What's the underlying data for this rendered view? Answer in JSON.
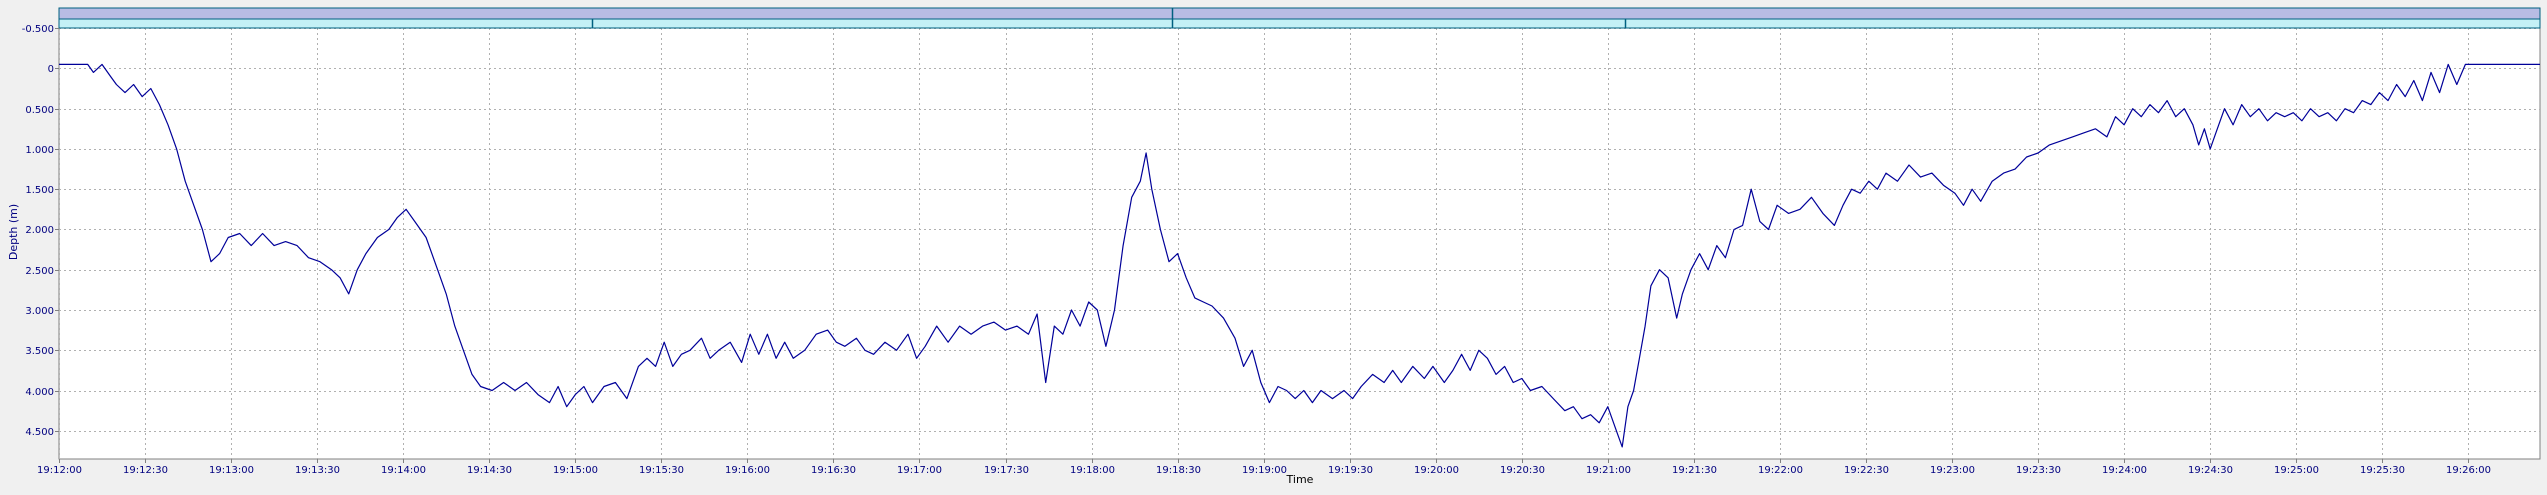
{
  "chart_data": {
    "type": "line",
    "title": "",
    "xlabel": "Time",
    "ylabel": "Depth (m)",
    "y_inverted": true,
    "ylim": [
      -0.75,
      4.85
    ],
    "xlim": [
      "19:12:00",
      "19:26:25"
    ],
    "grid": true,
    "colors": {
      "plot_bg": "#ffffff",
      "outer_bg": "#f0f0f0",
      "line": "#000099",
      "grid": "#b0b0b0",
      "axis_text": "#000080",
      "band_top": "#b8bce4",
      "band_bottom": "#c4f0f6",
      "band_border": "#006080"
    },
    "y_ticks": [
      {
        "v": -0.5,
        "label": "-0.500"
      },
      {
        "v": 0,
        "label": "0"
      },
      {
        "v": 0.5,
        "label": "0.500"
      },
      {
        "v": 1.0,
        "label": "1.000"
      },
      {
        "v": 1.5,
        "label": "1.500"
      },
      {
        "v": 2.0,
        "label": "2.000"
      },
      {
        "v": 2.5,
        "label": "2.500"
      },
      {
        "v": 3.0,
        "label": "3.000"
      },
      {
        "v": 3.5,
        "label": "3.500"
      },
      {
        "v": 4.0,
        "label": "4.000"
      },
      {
        "v": 4.5,
        "label": "4.500"
      }
    ],
    "x_ticks": [
      "19:12:00",
      "19:12:30",
      "19:13:00",
      "19:13:30",
      "19:14:00",
      "19:14:30",
      "19:15:00",
      "19:15:30",
      "19:16:00",
      "19:16:30",
      "19:17:00",
      "19:17:30",
      "19:18:00",
      "19:18:30",
      "19:19:00",
      "19:19:30",
      "19:20:00",
      "19:20:30",
      "19:21:00",
      "19:21:30",
      "19:22:00",
      "19:22:30",
      "19:23:00",
      "19:23:30",
      "19:24:00",
      "19:24:30",
      "19:25:00",
      "19:25:30",
      "19:26:00"
    ],
    "band_markers": [
      "19:15:06",
      "19:18:28",
      "19:21:06"
    ],
    "series": [
      {
        "name": "",
        "points": [
          [
            "19:12:00",
            -0.05
          ],
          [
            "19:12:10",
            -0.05
          ],
          [
            "19:12:12",
            0.05
          ],
          [
            "19:12:15",
            -0.05
          ],
          [
            "19:12:18",
            0.1
          ],
          [
            "19:12:20",
            0.2
          ],
          [
            "19:12:23",
            0.3
          ],
          [
            "19:12:26",
            0.2
          ],
          [
            "19:12:29",
            0.35
          ],
          [
            "19:12:32",
            0.25
          ],
          [
            "19:12:35",
            0.45
          ],
          [
            "19:12:38",
            0.7
          ],
          [
            "19:12:41",
            1.0
          ],
          [
            "19:12:44",
            1.4
          ],
          [
            "19:12:47",
            1.7
          ],
          [
            "19:12:50",
            2.0
          ],
          [
            "19:12:53",
            2.4
          ],
          [
            "19:12:56",
            2.3
          ],
          [
            "19:12:59",
            2.1
          ],
          [
            "19:13:03",
            2.05
          ],
          [
            "19:13:07",
            2.2
          ],
          [
            "19:13:11",
            2.05
          ],
          [
            "19:13:15",
            2.2
          ],
          [
            "19:13:19",
            2.15
          ],
          [
            "19:13:23",
            2.2
          ],
          [
            "19:13:27",
            2.35
          ],
          [
            "19:13:31",
            2.4
          ],
          [
            "19:13:35",
            2.5
          ],
          [
            "19:13:38",
            2.6
          ],
          [
            "19:13:41",
            2.8
          ],
          [
            "19:13:44",
            2.5
          ],
          [
            "19:13:47",
            2.3
          ],
          [
            "19:13:51",
            2.1
          ],
          [
            "19:13:55",
            2.0
          ],
          [
            "19:13:58",
            1.85
          ],
          [
            "19:14:01",
            1.75
          ],
          [
            "19:14:04",
            1.9
          ],
          [
            "19:14:08",
            2.1
          ],
          [
            "19:14:12",
            2.5
          ],
          [
            "19:14:15",
            2.8
          ],
          [
            "19:14:18",
            3.2
          ],
          [
            "19:14:21",
            3.5
          ],
          [
            "19:14:24",
            3.8
          ],
          [
            "19:14:27",
            3.95
          ],
          [
            "19:14:31",
            4.0
          ],
          [
            "19:14:35",
            3.9
          ],
          [
            "19:14:39",
            4.0
          ],
          [
            "19:14:43",
            3.9
          ],
          [
            "19:14:47",
            4.05
          ],
          [
            "19:14:51",
            4.15
          ],
          [
            "19:14:54",
            3.95
          ],
          [
            "19:14:57",
            4.2
          ],
          [
            "19:15:00",
            4.05
          ],
          [
            "19:15:03",
            3.95
          ],
          [
            "19:15:06",
            4.15
          ],
          [
            "19:15:10",
            3.95
          ],
          [
            "19:15:14",
            3.9
          ],
          [
            "19:15:18",
            4.1
          ],
          [
            "19:15:22",
            3.7
          ],
          [
            "19:15:25",
            3.6
          ],
          [
            "19:15:28",
            3.7
          ],
          [
            "19:15:31",
            3.4
          ],
          [
            "19:15:34",
            3.7
          ],
          [
            "19:15:37",
            3.55
          ],
          [
            "19:15:40",
            3.5
          ],
          [
            "19:15:44",
            3.35
          ],
          [
            "19:15:47",
            3.6
          ],
          [
            "19:15:50",
            3.5
          ],
          [
            "19:15:54",
            3.4
          ],
          [
            "19:15:58",
            3.65
          ],
          [
            "19:16:01",
            3.3
          ],
          [
            "19:16:04",
            3.55
          ],
          [
            "19:16:07",
            3.3
          ],
          [
            "19:16:10",
            3.6
          ],
          [
            "19:16:13",
            3.4
          ],
          [
            "19:16:16",
            3.6
          ],
          [
            "19:16:20",
            3.5
          ],
          [
            "19:16:24",
            3.3
          ],
          [
            "19:16:28",
            3.25
          ],
          [
            "19:16:31",
            3.4
          ],
          [
            "19:16:34",
            3.45
          ],
          [
            "19:16:38",
            3.35
          ],
          [
            "19:16:41",
            3.5
          ],
          [
            "19:16:44",
            3.55
          ],
          [
            "19:16:48",
            3.4
          ],
          [
            "19:16:52",
            3.5
          ],
          [
            "19:16:56",
            3.3
          ],
          [
            "19:16:59",
            3.6
          ],
          [
            "19:17:02",
            3.45
          ],
          [
            "19:17:06",
            3.2
          ],
          [
            "19:17:10",
            3.4
          ],
          [
            "19:17:14",
            3.2
          ],
          [
            "19:17:18",
            3.3
          ],
          [
            "19:17:22",
            3.2
          ],
          [
            "19:17:26",
            3.15
          ],
          [
            "19:17:30",
            3.25
          ],
          [
            "19:17:34",
            3.2
          ],
          [
            "19:17:38",
            3.3
          ],
          [
            "19:17:41",
            3.05
          ],
          [
            "19:17:44",
            3.9
          ],
          [
            "19:17:47",
            3.2
          ],
          [
            "19:17:50",
            3.3
          ],
          [
            "19:17:53",
            3.0
          ],
          [
            "19:17:56",
            3.2
          ],
          [
            "19:17:59",
            2.9
          ],
          [
            "19:18:02",
            3.0
          ],
          [
            "19:18:05",
            3.45
          ],
          [
            "19:18:08",
            3.0
          ],
          [
            "19:18:11",
            2.2
          ],
          [
            "19:18:14",
            1.6
          ],
          [
            "19:18:17",
            1.4
          ],
          [
            "19:18:19",
            1.05
          ],
          [
            "19:18:21",
            1.5
          ],
          [
            "19:18:24",
            2.0
          ],
          [
            "19:18:27",
            2.4
          ],
          [
            "19:18:30",
            2.3
          ],
          [
            "19:18:33",
            2.6
          ],
          [
            "19:18:36",
            2.85
          ],
          [
            "19:18:39",
            2.9
          ],
          [
            "19:18:42",
            2.95
          ],
          [
            "19:18:46",
            3.1
          ],
          [
            "19:18:50",
            3.35
          ],
          [
            "19:18:53",
            3.7
          ],
          [
            "19:18:56",
            3.5
          ],
          [
            "19:18:59",
            3.9
          ],
          [
            "19:19:02",
            4.15
          ],
          [
            "19:19:05",
            3.95
          ],
          [
            "19:19:08",
            4.0
          ],
          [
            "19:19:11",
            4.1
          ],
          [
            "19:19:14",
            4.0
          ],
          [
            "19:19:17",
            4.15
          ],
          [
            "19:19:20",
            4.0
          ],
          [
            "19:19:24",
            4.1
          ],
          [
            "19:19:28",
            4.0
          ],
          [
            "19:19:31",
            4.1
          ],
          [
            "19:19:34",
            3.95
          ],
          [
            "19:19:38",
            3.8
          ],
          [
            "19:19:42",
            3.9
          ],
          [
            "19:19:45",
            3.75
          ],
          [
            "19:19:48",
            3.9
          ],
          [
            "19:19:52",
            3.7
          ],
          [
            "19:19:56",
            3.85
          ],
          [
            "19:19:59",
            3.7
          ],
          [
            "19:20:03",
            3.9
          ],
          [
            "19:20:06",
            3.75
          ],
          [
            "19:20:09",
            3.55
          ],
          [
            "19:20:12",
            3.75
          ],
          [
            "19:20:15",
            3.5
          ],
          [
            "19:20:18",
            3.6
          ],
          [
            "19:20:21",
            3.8
          ],
          [
            "19:20:24",
            3.7
          ],
          [
            "19:20:27",
            3.9
          ],
          [
            "19:20:30",
            3.85
          ],
          [
            "19:20:33",
            4.0
          ],
          [
            "19:20:37",
            3.95
          ],
          [
            "19:20:41",
            4.1
          ],
          [
            "19:20:45",
            4.25
          ],
          [
            "19:20:48",
            4.2
          ],
          [
            "19:20:51",
            4.35
          ],
          [
            "19:20:54",
            4.3
          ],
          [
            "19:20:57",
            4.4
          ],
          [
            "19:21:00",
            4.2
          ],
          [
            "19:21:03",
            4.5
          ],
          [
            "19:21:05",
            4.7
          ],
          [
            "19:21:07",
            4.2
          ],
          [
            "19:21:09",
            4.0
          ],
          [
            "19:21:11",
            3.6
          ],
          [
            "19:21:13",
            3.2
          ],
          [
            "19:21:15",
            2.7
          ],
          [
            "19:21:18",
            2.5
          ],
          [
            "19:21:21",
            2.6
          ],
          [
            "19:21:24",
            3.1
          ],
          [
            "19:21:26",
            2.8
          ],
          [
            "19:21:29",
            2.5
          ],
          [
            "19:21:32",
            2.3
          ],
          [
            "19:21:35",
            2.5
          ],
          [
            "19:21:38",
            2.2
          ],
          [
            "19:21:41",
            2.35
          ],
          [
            "19:21:44",
            2.0
          ],
          [
            "19:21:47",
            1.95
          ],
          [
            "19:21:50",
            1.5
          ],
          [
            "19:21:53",
            1.9
          ],
          [
            "19:21:56",
            2.0
          ],
          [
            "19:21:59",
            1.7
          ],
          [
            "19:22:03",
            1.8
          ],
          [
            "19:22:07",
            1.75
          ],
          [
            "19:22:11",
            1.6
          ],
          [
            "19:22:15",
            1.8
          ],
          [
            "19:22:19",
            1.95
          ],
          [
            "19:22:22",
            1.7
          ],
          [
            "19:22:25",
            1.5
          ],
          [
            "19:22:28",
            1.55
          ],
          [
            "19:22:31",
            1.4
          ],
          [
            "19:22:34",
            1.5
          ],
          [
            "19:22:37",
            1.3
          ],
          [
            "19:22:41",
            1.4
          ],
          [
            "19:22:45",
            1.2
          ],
          [
            "19:22:49",
            1.35
          ],
          [
            "19:22:53",
            1.3
          ],
          [
            "19:22:57",
            1.45
          ],
          [
            "19:23:01",
            1.55
          ],
          [
            "19:23:04",
            1.7
          ],
          [
            "19:23:07",
            1.5
          ],
          [
            "19:23:10",
            1.65
          ],
          [
            "19:23:14",
            1.4
          ],
          [
            "19:23:18",
            1.3
          ],
          [
            "19:23:22",
            1.25
          ],
          [
            "19:23:26",
            1.1
          ],
          [
            "19:23:30",
            1.05
          ],
          [
            "19:23:34",
            0.95
          ],
          [
            "19:23:38",
            0.9
          ],
          [
            "19:23:42",
            0.85
          ],
          [
            "19:23:46",
            0.8
          ],
          [
            "19:23:50",
            0.75
          ],
          [
            "19:23:54",
            0.85
          ],
          [
            "19:23:57",
            0.6
          ],
          [
            "19:24:00",
            0.7
          ],
          [
            "19:24:03",
            0.5
          ],
          [
            "19:24:06",
            0.6
          ],
          [
            "19:24:09",
            0.45
          ],
          [
            "19:24:12",
            0.55
          ],
          [
            "19:24:15",
            0.4
          ],
          [
            "19:24:18",
            0.6
          ],
          [
            "19:24:21",
            0.5
          ],
          [
            "19:24:24",
            0.7
          ],
          [
            "19:24:26",
            0.95
          ],
          [
            "19:24:28",
            0.75
          ],
          [
            "19:24:30",
            1.0
          ],
          [
            "19:24:32",
            0.8
          ],
          [
            "19:24:35",
            0.5
          ],
          [
            "19:24:38",
            0.7
          ],
          [
            "19:24:41",
            0.45
          ],
          [
            "19:24:44",
            0.6
          ],
          [
            "19:24:47",
            0.5
          ],
          [
            "19:24:50",
            0.65
          ],
          [
            "19:24:53",
            0.55
          ],
          [
            "19:24:56",
            0.6
          ],
          [
            "19:24:59",
            0.55
          ],
          [
            "19:25:02",
            0.65
          ],
          [
            "19:25:05",
            0.5
          ],
          [
            "19:25:08",
            0.6
          ],
          [
            "19:25:11",
            0.55
          ],
          [
            "19:25:14",
            0.65
          ],
          [
            "19:25:17",
            0.5
          ],
          [
            "19:25:20",
            0.55
          ],
          [
            "19:25:23",
            0.4
          ],
          [
            "19:25:26",
            0.45
          ],
          [
            "19:25:29",
            0.3
          ],
          [
            "19:25:32",
            0.4
          ],
          [
            "19:25:35",
            0.2
          ],
          [
            "19:25:38",
            0.35
          ],
          [
            "19:25:41",
            0.15
          ],
          [
            "19:25:44",
            0.4
          ],
          [
            "19:25:47",
            0.05
          ],
          [
            "19:25:50",
            0.3
          ],
          [
            "19:25:53",
            -0.05
          ],
          [
            "19:25:56",
            0.2
          ],
          [
            "19:25:59",
            -0.05
          ],
          [
            "19:26:02",
            -0.05
          ],
          [
            "19:26:25",
            -0.05
          ]
        ]
      }
    ]
  }
}
